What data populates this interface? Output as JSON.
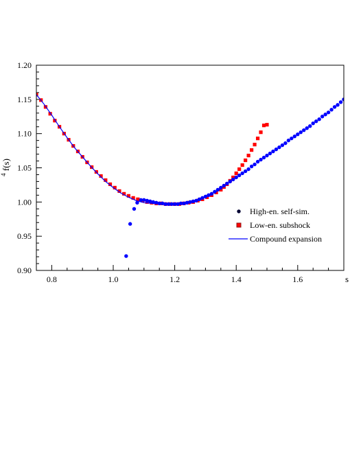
{
  "chart_data": {
    "type": "scatter",
    "xlabel": "s",
    "ylabel_superscript": "4",
    "ylabel_main": "f(s)",
    "xlim": [
      0.75,
      1.75
    ],
    "ylim": [
      0.9,
      1.2
    ],
    "x_ticks": [
      0.8,
      1.0,
      1.2,
      1.4,
      1.6
    ],
    "x_tick_labels": [
      "0.8",
      "1.0",
      "1.2",
      "1.4",
      "1.6"
    ],
    "y_ticks": [
      0.9,
      0.95,
      1.0,
      1.05,
      1.1,
      1.15,
      1.2
    ],
    "y_tick_labels": [
      "0.90",
      "0.95",
      "1.00",
      "1.05",
      "1.10",
      "1.15",
      "1.20"
    ],
    "grid": false,
    "legend_position": "lower-right",
    "series": [
      {
        "name": "High-en. self-sim.",
        "marker": "circle",
        "color": "#0000ff",
        "legend_marker_color": "#000033",
        "x": [
          1.042,
          1.055,
          1.068,
          1.078,
          1.09,
          1.1,
          1.11,
          1.12,
          1.13,
          1.14,
          1.15,
          1.16,
          1.17,
          1.18,
          1.19,
          1.2,
          1.21,
          1.22,
          1.23,
          1.24,
          1.25,
          1.26,
          1.27,
          1.28,
          1.29,
          1.3,
          1.31,
          1.32,
          1.33,
          1.34,
          1.35,
          1.36,
          1.37,
          1.38,
          1.39,
          1.4,
          1.41,
          1.42,
          1.43,
          1.44,
          1.45,
          1.46,
          1.47,
          1.48,
          1.49,
          1.5,
          1.51,
          1.52,
          1.53,
          1.54,
          1.55,
          1.56,
          1.57,
          1.58,
          1.59,
          1.6,
          1.61,
          1.62,
          1.63,
          1.64,
          1.65,
          1.66,
          1.67,
          1.68,
          1.69,
          1.7,
          1.71,
          1.72,
          1.73,
          1.74,
          1.75
        ],
        "y": [
          0.921,
          0.968,
          0.99,
          0.999,
          1.003,
          1.003,
          1.002,
          1.001,
          1.0,
          0.999,
          0.998,
          0.998,
          0.997,
          0.997,
          0.997,
          0.997,
          0.997,
          0.998,
          0.998,
          0.999,
          1.0,
          1.001,
          1.002,
          1.004,
          1.006,
          1.008,
          1.01,
          1.012,
          1.015,
          1.018,
          1.021,
          1.024,
          1.027,
          1.03,
          1.033,
          1.036,
          1.039,
          1.042,
          1.045,
          1.048,
          1.052,
          1.055,
          1.059,
          1.062,
          1.065,
          1.068,
          1.071,
          1.074,
          1.077,
          1.08,
          1.083,
          1.086,
          1.09,
          1.093,
          1.096,
          1.099,
          1.102,
          1.105,
          1.108,
          1.111,
          1.115,
          1.118,
          1.121,
          1.125,
          1.128,
          1.131,
          1.135,
          1.139,
          1.142,
          1.146,
          1.15
        ]
      },
      {
        "name": "Low-en. subshock",
        "marker": "square",
        "color": "#ff0000",
        "legend_marker_color": "#8b1a1a",
        "x": [
          0.75,
          0.765,
          0.78,
          0.795,
          0.81,
          0.825,
          0.84,
          0.855,
          0.87,
          0.885,
          0.9,
          0.915,
          0.93,
          0.945,
          0.96,
          0.975,
          0.99,
          1.005,
          1.02,
          1.035,
          1.05,
          1.065,
          1.08,
          1.095,
          1.11,
          1.125,
          1.14,
          1.155,
          1.17,
          1.185,
          1.2,
          1.215,
          1.23,
          1.245,
          1.26,
          1.275,
          1.29,
          1.305,
          1.32,
          1.335,
          1.35,
          1.36,
          1.37,
          1.38,
          1.39,
          1.4,
          1.41,
          1.42,
          1.43,
          1.44,
          1.45,
          1.46,
          1.47,
          1.48,
          1.49,
          1.5
        ],
        "y": [
          1.157,
          1.149,
          1.139,
          1.129,
          1.119,
          1.11,
          1.1,
          1.091,
          1.082,
          1.074,
          1.066,
          1.058,
          1.051,
          1.044,
          1.038,
          1.032,
          1.026,
          1.021,
          1.016,
          1.012,
          1.009,
          1.006,
          1.004,
          1.002,
          1.0,
          0.999,
          0.998,
          0.998,
          0.997,
          0.997,
          0.997,
          0.997,
          0.998,
          0.999,
          1.0,
          1.002,
          1.004,
          1.007,
          1.01,
          1.014,
          1.018,
          1.022,
          1.026,
          1.031,
          1.036,
          1.042,
          1.048,
          1.054,
          1.061,
          1.068,
          1.076,
          1.084,
          1.093,
          1.102,
          1.112,
          1.113
        ]
      },
      {
        "name": "Compound expansion",
        "marker": "line",
        "color": "#0000ff",
        "x": [
          0.75,
          0.775,
          0.8,
          0.825,
          0.85,
          0.875,
          0.9,
          0.925,
          0.95,
          0.975,
          1.0,
          1.025,
          1.05,
          1.075,
          1.1,
          1.125,
          1.15,
          1.175,
          1.2,
          1.225,
          1.25,
          1.275,
          1.3,
          1.325,
          1.35
        ],
        "y": [
          1.157,
          1.143,
          1.127,
          1.11,
          1.094,
          1.079,
          1.066,
          1.053,
          1.041,
          1.03,
          1.021,
          1.013,
          1.007,
          1.002,
          0.999,
          0.998,
          0.997,
          0.997,
          0.997,
          0.998,
          1.0,
          1.003,
          1.008,
          1.013,
          1.019
        ]
      }
    ]
  }
}
